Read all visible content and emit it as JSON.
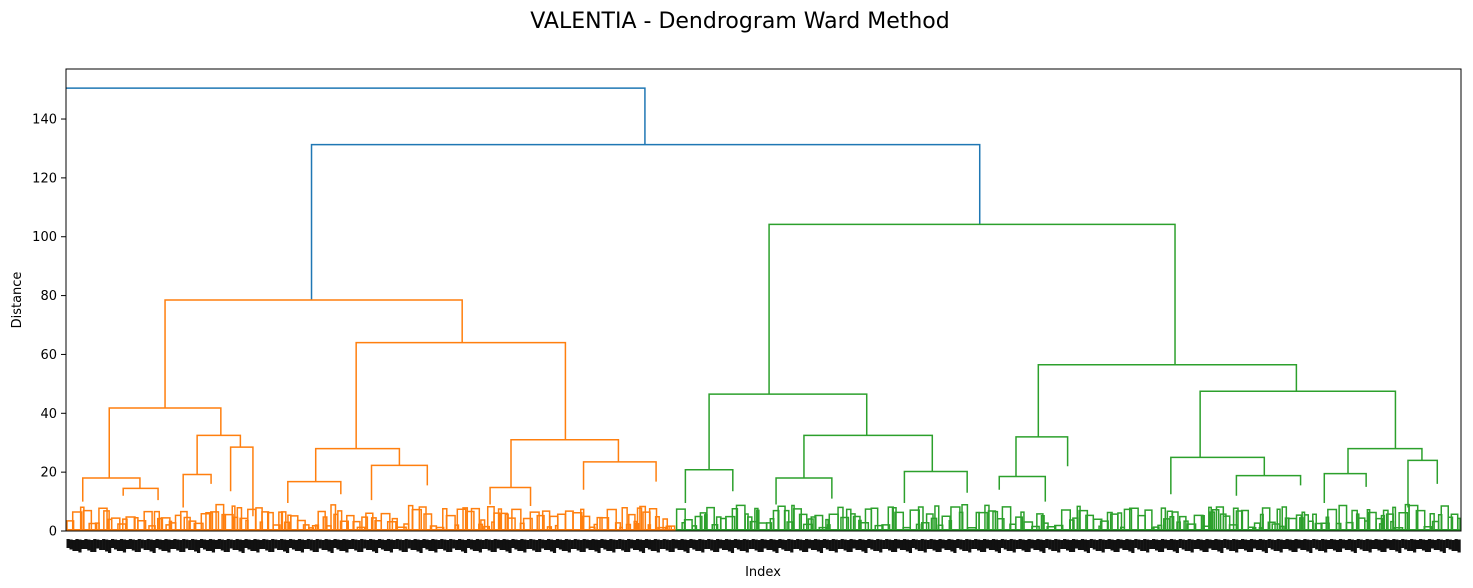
{
  "chart_data": {
    "type": "dendrogram",
    "title": "VALENTIA - Dendrogram Ward Method",
    "xlabel": "Index",
    "ylabel": "Distance",
    "ylim": [
      0,
      157
    ],
    "yticks": [
      0,
      20,
      40,
      60,
      80,
      100,
      120,
      140
    ],
    "grid": false,
    "colors": {
      "root": "#1f77b4",
      "cluster_1": "#ff7f0e",
      "cluster_2": "#2ca02c"
    },
    "leaf_count": 640,
    "note_leaf_labels": "dense overlapping index labels, illegible",
    "series": [
      {
        "name": "cluster_1",
        "color": "#ff7f0e",
        "x_range": [
          0,
          0.437
        ]
      },
      {
        "name": "cluster_2",
        "color": "#2ca02c",
        "x_range": [
          0.437,
          1
        ]
      }
    ],
    "links": [
      {
        "color": "root",
        "left": [
          0.0,
          150.5
        ],
        "right": [
          0.415,
          131.3
        ],
        "height": 150.5
      },
      {
        "color": "root",
        "left": [
          0.176,
          78.5
        ],
        "right": [
          0.655,
          104.2
        ],
        "height": 131.3
      },
      {
        "color": "cluster_1",
        "left": [
          0.071,
          41.8
        ],
        "right": [
          0.284,
          64.0
        ],
        "height": 78.5
      },
      {
        "color": "cluster_1",
        "left": [
          0.031,
          18.0
        ],
        "right": [
          0.111,
          32.5
        ],
        "height": 41.8
      },
      {
        "color": "cluster_1",
        "left": [
          0.208,
          28.0
        ],
        "right": [
          0.358,
          31.0
        ],
        "height": 64.0
      },
      {
        "color": "cluster_1",
        "left": [
          0.012,
          10.0
        ],
        "right": [
          0.053,
          14.5
        ],
        "height": 18.0
      },
      {
        "color": "cluster_1",
        "left": [
          0.094,
          19.2
        ],
        "right": [
          0.125,
          28.5
        ],
        "height": 32.5
      },
      {
        "color": "cluster_1",
        "left": [
          0.179,
          16.8
        ],
        "right": [
          0.239,
          22.3
        ],
        "height": 28.0
      },
      {
        "color": "cluster_1",
        "left": [
          0.319,
          14.8
        ],
        "right": [
          0.396,
          23.5
        ],
        "height": 31.0
      },
      {
        "color": "cluster_1",
        "left": [
          0.041,
          12.0
        ],
        "right": [
          0.066,
          10.5
        ],
        "height": 14.5
      },
      {
        "color": "cluster_1",
        "left": [
          0.084,
          8.0
        ],
        "right": [
          0.104,
          16.0
        ],
        "height": 19.2
      },
      {
        "color": "cluster_1",
        "left": [
          0.118,
          13.5
        ],
        "right": [
          0.134,
          5.0
        ],
        "height": 28.5
      },
      {
        "color": "cluster_1",
        "left": [
          0.159,
          9.5
        ],
        "right": [
          0.197,
          12.5
        ],
        "height": 16.8
      },
      {
        "color": "cluster_1",
        "left": [
          0.219,
          10.5
        ],
        "right": [
          0.259,
          15.5
        ],
        "height": 22.3
      },
      {
        "color": "cluster_1",
        "left": [
          0.304,
          9.0
        ],
        "right": [
          0.333,
          8.5
        ],
        "height": 14.8
      },
      {
        "color": "cluster_1",
        "left": [
          0.371,
          14.0
        ],
        "right": [
          0.423,
          16.8
        ],
        "height": 23.5
      },
      {
        "color": "cluster_2",
        "left": [
          0.504,
          46.5
        ],
        "right": [
          0.795,
          56.5
        ],
        "height": 104.2
      },
      {
        "color": "cluster_2",
        "left": [
          0.461,
          20.8
        ],
        "right": [
          0.574,
          32.5
        ],
        "height": 46.5
      },
      {
        "color": "cluster_2",
        "left": [
          0.697,
          32.0
        ],
        "right": [
          0.882,
          47.5
        ],
        "height": 56.5
      },
      {
        "color": "cluster_2",
        "left": [
          0.444,
          9.5
        ],
        "right": [
          0.478,
          13.5
        ],
        "height": 20.8
      },
      {
        "color": "cluster_2",
        "left": [
          0.529,
          18.0
        ],
        "right": [
          0.621,
          20.2
        ],
        "height": 32.5
      },
      {
        "color": "cluster_2",
        "left": [
          0.681,
          18.5
        ],
        "right": [
          0.718,
          22.0
        ],
        "height": 32.0
      },
      {
        "color": "cluster_2",
        "left": [
          0.813,
          25.0
        ],
        "right": [
          0.953,
          28.0
        ],
        "height": 47.5
      },
      {
        "color": "cluster_2",
        "left": [
          0.509,
          9.0
        ],
        "right": [
          0.549,
          11.0
        ],
        "height": 18.0
      },
      {
        "color": "cluster_2",
        "left": [
          0.601,
          9.5
        ],
        "right": [
          0.646,
          13.0
        ],
        "height": 20.2
      },
      {
        "color": "cluster_2",
        "left": [
          0.669,
          14.0
        ],
        "right": [
          0.702,
          10.0
        ],
        "height": 18.5
      },
      {
        "color": "cluster_2",
        "left": [
          0.792,
          12.5
        ],
        "right": [
          0.859,
          18.8
        ],
        "height": 25.0
      },
      {
        "color": "cluster_2",
        "left": [
          0.919,
          19.5
        ],
        "right": [
          0.972,
          24.0
        ],
        "height": 28.0
      },
      {
        "color": "cluster_2",
        "left": [
          0.839,
          12.0
        ],
        "right": [
          0.885,
          15.5
        ],
        "height": 18.8
      },
      {
        "color": "cluster_2",
        "left": [
          0.902,
          9.5
        ],
        "right": [
          0.932,
          15.0
        ],
        "height": 19.5
      },
      {
        "color": "cluster_2",
        "left": [
          0.962,
          8.0
        ],
        "right": [
          0.983,
          16.0
        ],
        "height": 24.0
      }
    ]
  }
}
